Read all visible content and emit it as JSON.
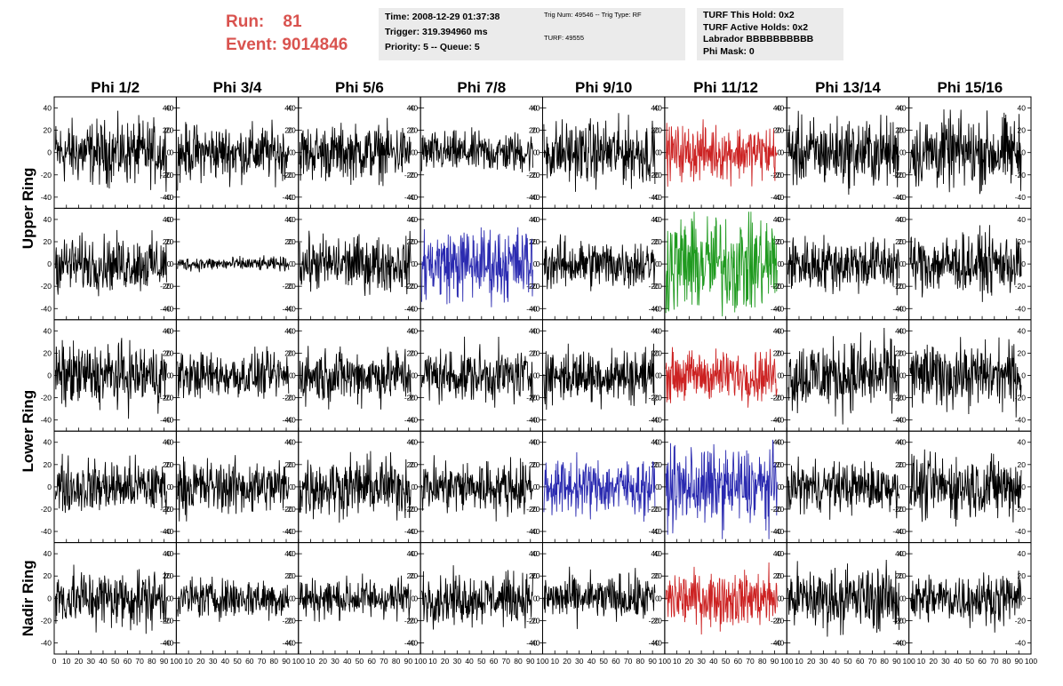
{
  "header": {
    "run_label": "Run:",
    "run_value": "81",
    "event_label": "Event:",
    "event_value": "9014846",
    "run_color": "#d9534f"
  },
  "info_boxes": {
    "time": {
      "line1": "Time: 2008-12-29 01:37:38",
      "line2": "Trigger: 319.394960 ms",
      "line3": "Priority: 5 -- Queue: 5"
    },
    "trig": {
      "line1": "Trig Num: 49546 -- Trig Type: RF",
      "line2": "TURF: 49555"
    },
    "turf": {
      "line1": "TURF This Hold: 0x2",
      "line2": "TURF Active Holds: 0x2",
      "line3": "Labrador BBBBBBBBBB",
      "line4": "Phi Mask: 0"
    },
    "box_color": "#ebebeb"
  },
  "chart_data": {
    "type": "line",
    "columns": [
      "Phi 1/2",
      "Phi 3/4",
      "Phi 5/6",
      "Phi 7/8",
      "Phi 9/10",
      "Phi 11/12",
      "Phi 13/14",
      "Phi 15/16"
    ],
    "rows": [
      "Upper Ring",
      "Lower Ring",
      "Nadir Ring"
    ],
    "x_ticks": [
      "0",
      "10",
      "20",
      "30",
      "40",
      "50",
      "60",
      "70",
      "80",
      "90",
      "100"
    ],
    "y_ticks": [
      "40",
      "20",
      "0",
      "-20",
      "-40"
    ],
    "xlim": [
      0,
      100
    ],
    "ylim": [
      -50,
      50
    ],
    "panel_rows": 5,
    "panel_cols": 8,
    "noise_amplitude": [
      [
        14,
        12,
        12,
        9,
        14,
        12,
        15,
        16
      ],
      [
        12,
        3,
        12,
        16,
        11,
        22,
        12,
        13
      ],
      [
        14,
        10,
        12,
        12,
        12,
        11,
        16,
        14
      ],
      [
        12,
        12,
        13,
        12,
        12,
        17,
        11,
        14
      ],
      [
        13,
        9,
        9,
        11,
        10,
        12,
        14,
        11
      ]
    ],
    "trace_colors": [
      [
        "#000000",
        "#000000",
        "#000000",
        "#000000",
        "#000000",
        "#cc2222",
        "#000000",
        "#000000"
      ],
      [
        "#000000",
        "#000000",
        "#000000",
        "#2a2ab0",
        "#000000",
        "#1f9a1f",
        "#000000",
        "#000000"
      ],
      [
        "#000000",
        "#000000",
        "#000000",
        "#000000",
        "#000000",
        "#cc2222",
        "#000000",
        "#000000"
      ],
      [
        "#000000",
        "#000000",
        "#000000",
        "#000000",
        "#2a2ab0",
        "#2a2ab0",
        "#000000",
        "#000000"
      ],
      [
        "#000000",
        "#000000",
        "#000000",
        "#000000",
        "#000000",
        "#cc2222",
        "#000000",
        "#000000"
      ]
    ]
  }
}
